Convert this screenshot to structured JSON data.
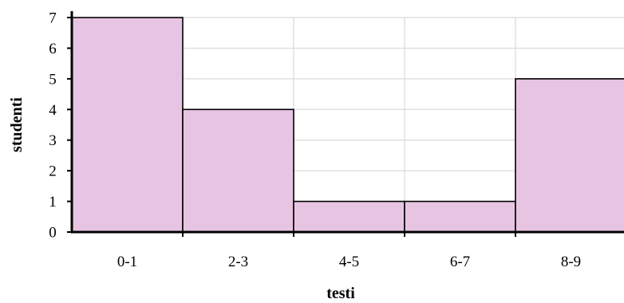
{
  "chart_data": {
    "type": "bar",
    "categories": [
      "0-1",
      "2-3",
      "4-5",
      "6-7",
      "8-9"
    ],
    "values": [
      7,
      4,
      1,
      1,
      5
    ],
    "title": "",
    "xlabel": "testi",
    "ylabel": "studenti",
    "ylim": [
      0,
      7
    ],
    "yticks": [
      0,
      1,
      2,
      3,
      4,
      5,
      6,
      7
    ],
    "grid": true,
    "bar_color": "#e8c4e3",
    "bar_edge_color": "#000000",
    "grid_color": "#d9d9d9"
  }
}
